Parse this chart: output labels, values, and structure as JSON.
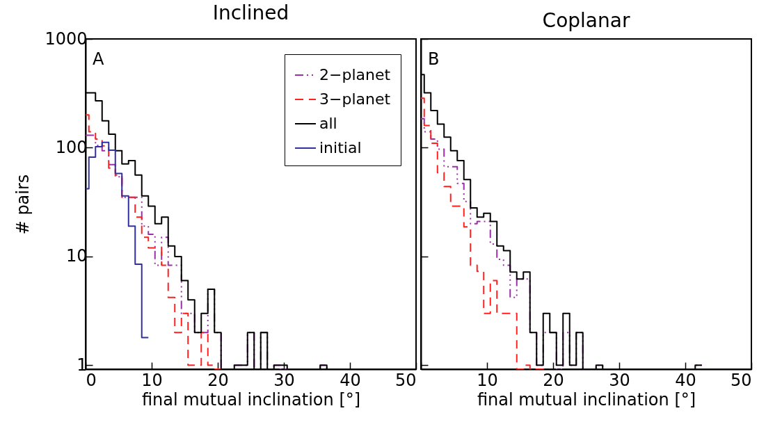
{
  "chart_data": [
    {
      "type": "histogram",
      "title": "Inclined",
      "xlabel": "final mutual inclination [°]",
      "ylabel": "# pairs",
      "bins": [
        0,
        0.5,
        1.5,
        2.5,
        3.5,
        4.5,
        5.5,
        6.5,
        7.5,
        8.5,
        9.5,
        10.5,
        11.5,
        12.5,
        13.5,
        14.5,
        15.5,
        16.5,
        17.5,
        18.5,
        19.5,
        20.5,
        21.5,
        22.5,
        23.5,
        24.5,
        25.5,
        26.5,
        27.5,
        28.5,
        29.5,
        30.5,
        31.5,
        32.5,
        33.5,
        34.5,
        35.5,
        36.5,
        37.5,
        38.5,
        39.5,
        40.5,
        41.5,
        42.5
      ],
      "series": [
        {
          "name": "2−planet",
          "color": "#9b30a8",
          "line_style": "dashdot",
          "values": [
            130,
            130,
            105,
            94,
            70,
            54,
            35,
            35,
            35,
            19,
            16,
            8.3,
            15,
            8.3,
            8.3,
            3,
            3,
            2,
            2,
            5,
            2,
            null,
            null,
            1,
            1,
            2,
            null,
            2,
            null,
            1,
            null,
            null,
            null,
            null,
            null,
            null,
            1,
            null,
            null,
            null,
            null,
            null,
            null
          ]
        },
        {
          "name": "3−planet",
          "color": "#ff2020",
          "line_style": "dashed",
          "bins": [
            0,
            0.5,
            1.5,
            2.5,
            3.5,
            4.5,
            5.5,
            6.5,
            7.5,
            8.5,
            9.5,
            10.5,
            11.5,
            12.5,
            13.5,
            14.5,
            15.5,
            16.5,
            17.5,
            18.5,
            19.5,
            20.5,
            21.5
          ],
          "values": [
            200,
            140,
            120,
            104,
            65,
            56,
            35,
            35,
            23,
            15,
            12,
            12,
            8.3,
            4.2,
            2,
            3,
            1,
            1,
            2,
            1,
            null,
            null
          ]
        },
        {
          "name": "all",
          "color": "#000000",
          "line_style": "solid",
          "values": [
            320,
            320,
            270,
            177,
            133,
            94,
            71,
            76,
            56,
            36,
            29,
            20,
            23,
            12.5,
            10,
            6,
            4,
            2,
            3,
            5,
            2,
            null,
            null,
            1,
            1,
            2,
            null,
            2,
            null,
            1,
            1,
            null,
            null,
            null,
            null,
            null,
            1,
            null,
            null,
            null,
            null,
            null,
            null
          ]
        },
        {
          "name": "initial",
          "color": "#3030a0",
          "line_style": "solid",
          "bins": [
            0,
            0.5,
            1.5,
            2.5,
            3.5,
            4.5,
            5.5,
            6.5,
            7.5,
            8.5,
            9.5
          ],
          "values": [
            42,
            82,
            102,
            112,
            95,
            58,
            36,
            19,
            8.5,
            1.8
          ]
        }
      ],
      "xlim": [
        0,
        50
      ],
      "xticks": [
        0,
        10,
        20,
        30,
        40,
        50
      ],
      "ylim": [
        0.92,
        1000
      ],
      "yticks": [
        1,
        10,
        100,
        1000
      ],
      "log": true,
      "legend": "top right",
      "annotations": [
        "A"
      ]
    },
    {
      "type": "histogram",
      "title": "Coplanar",
      "xlabel": "final mutual inclination [°]",
      "bins": [
        0,
        0.5,
        1.5,
        2.5,
        3.5,
        4.5,
        5.5,
        6.5,
        7.5,
        8.5,
        9.5,
        10.5,
        11.5,
        12.5,
        13.5,
        14.5,
        15.5,
        16.5,
        17.5,
        18.5,
        19.5,
        20.5,
        21.5,
        22.5,
        23.5,
        24.5,
        25.5,
        26.5,
        27.5,
        28.5,
        29.5,
        30.5,
        31.5,
        32.5,
        33.5,
        34.5,
        35.5,
        36.5,
        37.5,
        38.5,
        39.5,
        40.5,
        41.5,
        42.5
      ],
      "series": [
        {
          "color": "#9b30a8",
          "line_style": "dashdot",
          "values": [
            185,
            140,
            120,
            97,
            67,
            67,
            47,
            32,
            20,
            21,
            21,
            13,
            9.4,
            8.3,
            4.2,
            6.2,
            6.2,
            2,
            1,
            2,
            2,
            null,
            2,
            1,
            2,
            null,
            null,
            1,
            null,
            null,
            null,
            null,
            null,
            null,
            null,
            null,
            null,
            null,
            null,
            null,
            null,
            null,
            1
          ]
        },
        {
          "color": "#ff2020",
          "line_style": "dashed",
          "bins": [
            0,
            0.5,
            1.5,
            2.5,
            3.5,
            4.5,
            5.5,
            6.5,
            7.5,
            8.5,
            9.5,
            10.5,
            11.5,
            12.5,
            13.5,
            14.5,
            15.5,
            16.5,
            17.5,
            18.5,
            19.5
          ],
          "values": [
            285,
            160,
            110,
            59,
            44,
            29,
            29,
            18.7,
            8.3,
            7.3,
            3,
            6,
            3,
            3,
            3,
            null,
            1,
            null,
            null,
            null
          ]
        },
        {
          "color": "#000000",
          "line_style": "solid",
          "values": [
            470,
            320,
            220,
            165,
            125,
            94,
            76,
            51,
            28,
            23,
            25,
            21,
            12.5,
            11.3,
            7.2,
            6.2,
            7.2,
            2,
            1,
            3,
            2,
            1,
            3,
            1,
            2,
            null,
            null,
            1,
            null,
            null,
            null,
            null,
            null,
            null,
            null,
            null,
            null,
            null,
            null,
            null,
            null,
            null,
            1
          ]
        }
      ],
      "xlim": [
        0,
        50
      ],
      "xticks": [
        {
          "value": 0,
          "label": null
        },
        10,
        20,
        30,
        40,
        50
      ],
      "ylim": [
        0.92,
        1000
      ],
      "yticks": [
        1,
        10,
        100,
        1000
      ],
      "log": true,
      "tick_labels": "x",
      "annotations": [
        "B"
      ]
    }
  ]
}
